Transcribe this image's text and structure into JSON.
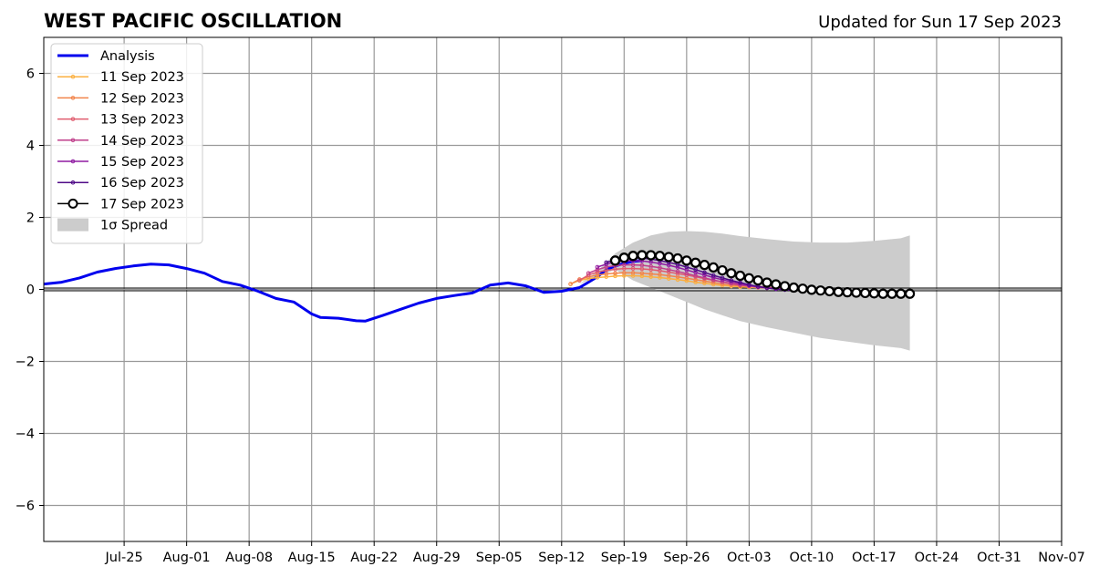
{
  "title": "WEST PACIFIC OSCILLATION",
  "updated": "Updated for Sun 17 Sep 2023",
  "chart_data": {
    "type": "line",
    "title": "WEST PACIFIC OSCILLATION",
    "xlabel": "",
    "ylabel": "",
    "x_axis": {
      "type": "date",
      "range": [
        "2023-07-16",
        "2023-11-07"
      ],
      "ticks": [
        "2023-07-25",
        "2023-08-01",
        "2023-08-08",
        "2023-08-15",
        "2023-08-22",
        "2023-08-29",
        "2023-09-05",
        "2023-09-12",
        "2023-09-19",
        "2023-09-26",
        "2023-10-03",
        "2023-10-10",
        "2023-10-17",
        "2023-10-24",
        "2023-10-31",
        "2023-11-07"
      ],
      "tick_labels": [
        "Jul-25",
        "Aug-01",
        "Aug-08",
        "Aug-15",
        "Aug-22",
        "Aug-29",
        "Sep-05",
        "Sep-12",
        "Sep-19",
        "Sep-26",
        "Oct-03",
        "Oct-10",
        "Oct-17",
        "Oct-24",
        "Oct-31",
        "Nov-07"
      ]
    },
    "y_axis": {
      "range": [
        -7,
        7
      ],
      "ticks": [
        -6,
        -4,
        -2,
        0,
        2,
        4,
        6
      ],
      "tick_labels": [
        "−6",
        "−4",
        "−2",
        "0",
        "2",
        "4",
        "6"
      ]
    },
    "grid": true,
    "zero_line": true,
    "legend": {
      "placement": "top-left",
      "entries": [
        {
          "label": "Analysis",
          "style": "line",
          "color": "#0000ee"
        },
        {
          "label": "11 Sep 2023",
          "style": "small-marker-line",
          "color": "#fbb040"
        },
        {
          "label": "12 Sep 2023",
          "style": "small-marker-line",
          "color": "#f2844b"
        },
        {
          "label": "13 Sep 2023",
          "style": "small-marker-line",
          "color": "#e05c6e"
        },
        {
          "label": "14 Sep 2023",
          "style": "small-marker-line",
          "color": "#c03f8b"
        },
        {
          "label": "15 Sep 2023",
          "style": "small-marker-line",
          "color": "#8f1ba2"
        },
        {
          "label": "16 Sep 2023",
          "style": "small-marker-line",
          "color": "#4f0b87"
        },
        {
          "label": "17 Sep 2023",
          "style": "circle-marker-line",
          "color": "#000000"
        },
        {
          "label": "1σ Spread",
          "style": "patch",
          "color": "#cccccc"
        }
      ]
    },
    "analysis": {
      "name": "Analysis",
      "color": "#0000ee",
      "points": [
        [
          "2023-07-16",
          0.15
        ],
        [
          "2023-07-18",
          0.2
        ],
        [
          "2023-07-20",
          0.32
        ],
        [
          "2023-07-22",
          0.48
        ],
        [
          "2023-07-24",
          0.58
        ],
        [
          "2023-07-26",
          0.65
        ],
        [
          "2023-07-28",
          0.7
        ],
        [
          "2023-07-30",
          0.68
        ],
        [
          "2023-08-01",
          0.58
        ],
        [
          "2023-08-03",
          0.45
        ],
        [
          "2023-08-05",
          0.22
        ],
        [
          "2023-08-07",
          0.12
        ],
        [
          "2023-08-09",
          -0.05
        ],
        [
          "2023-08-11",
          -0.25
        ],
        [
          "2023-08-13",
          -0.35
        ],
        [
          "2023-08-15",
          -0.68
        ],
        [
          "2023-08-16",
          -0.78
        ],
        [
          "2023-08-18",
          -0.8
        ],
        [
          "2023-08-20",
          -0.87
        ],
        [
          "2023-08-21",
          -0.88
        ],
        [
          "2023-08-23",
          -0.72
        ],
        [
          "2023-08-25",
          -0.55
        ],
        [
          "2023-08-27",
          -0.38
        ],
        [
          "2023-08-29",
          -0.25
        ],
        [
          "2023-08-31",
          -0.17
        ],
        [
          "2023-09-02",
          -0.1
        ],
        [
          "2023-09-04",
          0.12
        ],
        [
          "2023-09-06",
          0.18
        ],
        [
          "2023-09-08",
          0.1
        ],
        [
          "2023-09-10",
          -0.08
        ],
        [
          "2023-09-12",
          -0.05
        ],
        [
          "2023-09-14",
          0.05
        ],
        [
          "2023-09-15",
          0.2
        ],
        [
          "2023-09-16",
          0.35
        ],
        [
          "2023-09-17",
          0.55
        ],
        [
          "2023-09-18",
          0.65
        ],
        [
          "2023-09-19",
          0.72
        ],
        [
          "2023-09-20",
          0.78
        ],
        [
          "2023-09-21",
          0.8
        ]
      ]
    },
    "series": [
      {
        "name": "11 Sep 2023",
        "color": "#fbb040",
        "marker": "small",
        "start": "2023-09-13",
        "values": [
          0.15,
          0.25,
          0.3,
          0.33,
          0.35,
          0.37,
          0.38,
          0.38,
          0.37,
          0.35,
          0.33,
          0.3,
          0.27,
          0.24,
          0.2,
          0.17,
          0.14,
          0.11,
          0.09,
          0.07,
          0.06,
          0.05,
          0.04,
          0.03,
          0.02,
          0.01,
          0.0,
          -0.01
        ]
      },
      {
        "name": "12 Sep 2023",
        "color": "#f2844b",
        "marker": "small",
        "start": "2023-09-13",
        "values": [
          0.15,
          0.28,
          0.35,
          0.4,
          0.43,
          0.45,
          0.46,
          0.46,
          0.45,
          0.43,
          0.41,
          0.38,
          0.35,
          0.31,
          0.27,
          0.23,
          0.19,
          0.15,
          0.12,
          0.1,
          0.08,
          0.06,
          0.05,
          0.04,
          0.03,
          0.02,
          0.01
        ]
      },
      {
        "name": "13 Sep 2023",
        "color": "#e05c6e",
        "marker": "small",
        "start": "2023-09-14",
        "values": [
          0.25,
          0.4,
          0.48,
          0.53,
          0.56,
          0.58,
          0.58,
          0.57,
          0.55,
          0.52,
          0.48,
          0.44,
          0.4,
          0.35,
          0.3,
          0.25,
          0.21,
          0.17,
          0.13,
          0.1,
          0.08,
          0.06,
          0.04,
          0.03,
          0.02,
          0.01
        ]
      },
      {
        "name": "14 Sep 2023",
        "color": "#c03f8b",
        "marker": "small",
        "start": "2023-09-15",
        "values": [
          0.45,
          0.55,
          0.62,
          0.66,
          0.68,
          0.68,
          0.67,
          0.64,
          0.6,
          0.55,
          0.5,
          0.44,
          0.38,
          0.32,
          0.26,
          0.21,
          0.16,
          0.12,
          0.09,
          0.06,
          0.04,
          0.02,
          0.01,
          0.0
        ]
      },
      {
        "name": "15 Sep 2023",
        "color": "#8f1ba2",
        "marker": "small",
        "start": "2023-09-16",
        "values": [
          0.62,
          0.7,
          0.76,
          0.79,
          0.8,
          0.79,
          0.76,
          0.72,
          0.67,
          0.61,
          0.54,
          0.47,
          0.4,
          0.33,
          0.27,
          0.21,
          0.16,
          0.11,
          0.07,
          0.04,
          0.02,
          0.0,
          -0.01
        ]
      },
      {
        "name": "16 Sep 2023",
        "color": "#4f0b87",
        "marker": "small",
        "start": "2023-09-17",
        "values": [
          0.75,
          0.82,
          0.86,
          0.88,
          0.87,
          0.84,
          0.8,
          0.75,
          0.69,
          0.62,
          0.55,
          0.47,
          0.39,
          0.32,
          0.25,
          0.19,
          0.13,
          0.08,
          0.04,
          0.01,
          -0.01,
          -0.03
        ]
      },
      {
        "name": "17 Sep 2023",
        "color": "#000000",
        "marker": "circle",
        "start": "2023-09-18",
        "values": [
          0.8,
          0.88,
          0.93,
          0.95,
          0.95,
          0.93,
          0.9,
          0.86,
          0.8,
          0.74,
          0.68,
          0.61,
          0.53,
          0.45,
          0.38,
          0.31,
          0.25,
          0.19,
          0.14,
          0.09,
          0.05,
          0.02,
          -0.01,
          -0.03,
          -0.05,
          -0.07,
          -0.08,
          -0.09,
          -0.1,
          -0.11,
          -0.12,
          -0.12,
          -0.12,
          -0.12
        ]
      }
    ],
    "spread": {
      "name": "1σ Spread",
      "color": "#cccccc",
      "points": [
        [
          "2023-09-14",
          0.15,
          0.15
        ],
        [
          "2023-09-16",
          0.35,
          0.5
        ],
        [
          "2023-09-18",
          0.55,
          1.0
        ],
        [
          "2023-09-20",
          0.25,
          1.3
        ],
        [
          "2023-09-22",
          0.05,
          1.5
        ],
        [
          "2023-09-24",
          -0.15,
          1.6
        ],
        [
          "2023-09-26",
          -0.35,
          1.62
        ],
        [
          "2023-09-28",
          -0.55,
          1.6
        ],
        [
          "2023-09-30",
          -0.72,
          1.55
        ],
        [
          "2023-10-02",
          -0.88,
          1.48
        ],
        [
          "2023-10-05",
          -1.05,
          1.4
        ],
        [
          "2023-10-08",
          -1.2,
          1.33
        ],
        [
          "2023-10-11",
          -1.35,
          1.3
        ],
        [
          "2023-10-14",
          -1.45,
          1.3
        ],
        [
          "2023-10-17",
          -1.55,
          1.35
        ],
        [
          "2023-10-20",
          -1.63,
          1.42
        ],
        [
          "2023-10-21",
          -1.7,
          1.5
        ]
      ]
    }
  }
}
